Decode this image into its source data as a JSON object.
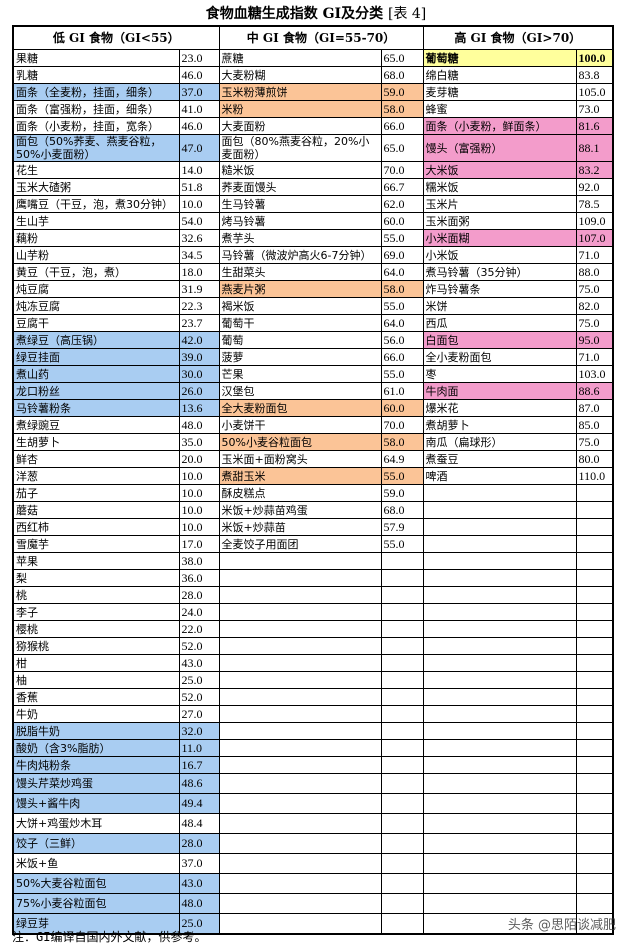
{
  "title": {
    "main": "食物血糖生成指数 GI及分类",
    "sub": "[表 4]"
  },
  "colors": {
    "blue": "#a9cdf2",
    "orange": "#fbc497",
    "pink": "#f39ccb",
    "yellow": "#ffff9c"
  },
  "headers": [
    "低 GI 食物（GI<55）",
    "中 GI 食物（GI=55-70）",
    "高 GI 食物（GI>70）"
  ],
  "low": [
    {
      "name": "果糖",
      "value": "23.0"
    },
    {
      "name": "乳糖",
      "value": "46.0"
    },
    {
      "name": "面条（全麦粉，挂面，细条）",
      "value": "37.0",
      "hl": "blue"
    },
    {
      "name": "面条（富强粉，挂面，细条）",
      "value": "41.0"
    },
    {
      "name": "面条（小麦粉，挂面，宽条）",
      "value": "46.0"
    },
    {
      "name": "面包（50%荞麦、燕麦谷粒，50%小麦面粉）",
      "value": "47.0",
      "hl": "blue"
    },
    {
      "name": "花生",
      "value": "14.0"
    },
    {
      "name": "玉米大碴粥",
      "value": "51.8"
    },
    {
      "name": "鹰嘴豆（干豆，泡，煮30分钟）",
      "value": "10.0"
    },
    {
      "name": "生山芋",
      "value": "54.0"
    },
    {
      "name": "藕粉",
      "value": "32.6"
    },
    {
      "name": "山芋粉",
      "value": "34.5"
    },
    {
      "name": "黄豆（干豆，泡，煮）",
      "value": "18.0"
    },
    {
      "name": "炖豆腐",
      "value": "31.9"
    },
    {
      "name": "炖冻豆腐",
      "value": "22.3"
    },
    {
      "name": "豆腐干",
      "value": "23.7"
    },
    {
      "name": "煮绿豆（高压锅）",
      "value": "42.0",
      "hl": "blue"
    },
    {
      "name": "绿豆挂面",
      "value": "39.0",
      "hl": "blue"
    },
    {
      "name": "煮山药",
      "value": "30.0",
      "hl": "blue"
    },
    {
      "name": "龙口粉丝",
      "value": "26.0",
      "hl": "blue"
    },
    {
      "name": "马铃薯粉条",
      "value": "13.6",
      "hl": "blue"
    },
    {
      "name": "煮绿豌豆",
      "value": "48.0"
    },
    {
      "name": "生胡萝卜",
      "value": "35.0"
    },
    {
      "name": "鲜杏",
      "value": "20.0"
    },
    {
      "name": "洋葱",
      "value": "10.0"
    },
    {
      "name": "茄子",
      "value": "10.0"
    },
    {
      "name": "蘑菇",
      "value": "10.0"
    },
    {
      "name": "西红柿",
      "value": "10.0"
    },
    {
      "name": "雪魔芋",
      "value": "17.0"
    },
    {
      "name": "苹果",
      "value": "38.0"
    },
    {
      "name": "梨",
      "value": "36.0"
    },
    {
      "name": "桃",
      "value": "28.0"
    },
    {
      "name": "李子",
      "value": "24.0"
    },
    {
      "name": "樱桃",
      "value": "22.0"
    },
    {
      "name": "猕猴桃",
      "value": "52.0"
    },
    {
      "name": "柑",
      "value": "43.0"
    },
    {
      "name": "柚",
      "value": "25.0"
    },
    {
      "name": "香蕉",
      "value": "52.0"
    },
    {
      "name": "牛奶",
      "value": "27.0"
    },
    {
      "name": "脱脂牛奶",
      "value": "32.0",
      "hl": "blue"
    },
    {
      "name": "酸奶（含3%脂肪）",
      "value": "11.0",
      "hl": "blue"
    },
    {
      "name": "牛肉炖粉条",
      "value": "16.7",
      "hl": "blue"
    },
    {
      "name": "馒头芹菜炒鸡蛋",
      "value": "48.6",
      "hl": "blue"
    },
    {
      "name": "馒头+酱牛肉",
      "value": "49.4",
      "hl": "blue"
    },
    {
      "name": "大饼+鸡蛋炒木耳",
      "value": "48.4"
    },
    {
      "name": "饺子（三鲜）",
      "value": "28.0",
      "hl": "blue"
    },
    {
      "name": "米饭+鱼",
      "value": "37.0"
    },
    {
      "name": "50%大麦谷粒面包",
      "value": "43.0",
      "hl": "blue"
    },
    {
      "name": "75%小麦谷粒面包",
      "value": "48.0",
      "hl": "blue"
    },
    {
      "name": "绿豆芽",
      "value": "25.0",
      "hl": "blue"
    }
  ],
  "mid": [
    {
      "name": "蔗糖",
      "value": "65.0"
    },
    {
      "name": "大麦粉糊",
      "value": "68.0"
    },
    {
      "name": "玉米粉薄煎饼",
      "value": "59.0",
      "hl": "orange"
    },
    {
      "name": "米粉",
      "value": "58.0",
      "hl": "orange"
    },
    {
      "name": "大麦面粉",
      "value": "66.0"
    },
    {
      "name": "面包（80%燕麦谷粒，20%小麦面粉）",
      "value": "65.0"
    },
    {
      "name": "糙米饭",
      "value": "70.0"
    },
    {
      "name": "荞麦面馒头",
      "value": "66.7"
    },
    {
      "name": "生马铃薯",
      "value": "62.0"
    },
    {
      "name": "烤马铃薯",
      "value": "60.0"
    },
    {
      "name": "煮芋头",
      "value": "55.0"
    },
    {
      "name": "马铃薯（微波炉高火6-7分钟）",
      "value": "69.0"
    },
    {
      "name": "生甜菜头",
      "value": "64.0"
    },
    {
      "name": "燕麦片粥",
      "value": "58.0",
      "hl": "orange"
    },
    {
      "name": "褐米饭",
      "value": "55.0"
    },
    {
      "name": "葡萄干",
      "value": "64.0"
    },
    {
      "name": "葡萄",
      "value": "56.0"
    },
    {
      "name": "菠萝",
      "value": "66.0"
    },
    {
      "name": "芒果",
      "value": "55.0"
    },
    {
      "name": "汉堡包",
      "value": "61.0"
    },
    {
      "name": "全大麦粉面包",
      "value": "60.0",
      "hl": "orange"
    },
    {
      "name": "小麦饼干",
      "value": "70.0"
    },
    {
      "name": "50%小麦谷粒面包",
      "value": "58.0",
      "hl": "orange"
    },
    {
      "name": "玉米面+面粉窝头",
      "value": "64.9"
    },
    {
      "name": "煮甜玉米",
      "value": "55.0",
      "hl": "orange"
    },
    {
      "name": "酥皮糕点",
      "value": "59.0"
    },
    {
      "name": "米饭+炒蒜苗鸡蛋",
      "value": "68.0"
    },
    {
      "name": "米饭+炒蒜苗",
      "value": "57.9"
    },
    {
      "name": "全麦饺子用面团",
      "value": "55.0"
    }
  ],
  "high": [
    {
      "name": "葡萄糖",
      "value": "100.0",
      "hl": "yellow",
      "bold": true
    },
    {
      "name": "绵白糖",
      "value": "83.8"
    },
    {
      "name": "麦芽糖",
      "value": "105.0"
    },
    {
      "name": "蜂蜜",
      "value": "73.0"
    },
    {
      "name": "面条（小麦粉，鲜面条）",
      "value": "81.6",
      "hl": "pink"
    },
    {
      "name": "馒头（富强粉）",
      "value": "88.1",
      "hl": "pink"
    },
    {
      "name": "大米饭",
      "value": "83.2",
      "hl": "pink"
    },
    {
      "name": "糯米饭",
      "value": "92.0"
    },
    {
      "name": "玉米片",
      "value": "78.5"
    },
    {
      "name": "玉米面粥",
      "value": "109.0"
    },
    {
      "name": "小米面糊",
      "value": "107.0",
      "hl": "pink"
    },
    {
      "name": "小米饭",
      "value": "71.0"
    },
    {
      "name": "煮马铃薯（35分钟）",
      "value": "88.0"
    },
    {
      "name": "炸马铃薯条",
      "value": "75.0"
    },
    {
      "name": "米饼",
      "value": "82.0"
    },
    {
      "name": "西瓜",
      "value": "75.0"
    },
    {
      "name": "白面包",
      "value": "95.0",
      "hl": "pink"
    },
    {
      "name": "全小麦粉面包",
      "value": "71.0"
    },
    {
      "name": "枣",
      "value": "103.0"
    },
    {
      "name": "牛肉面",
      "value": "88.6",
      "hl": "pink"
    },
    {
      "name": "爆米花",
      "value": "87.0"
    },
    {
      "name": "煮胡萝卜",
      "value": "85.0"
    },
    {
      "name": "南瓜（扁球形）",
      "value": "75.0"
    },
    {
      "name": "煮蚕豆",
      "value": "80.0"
    },
    {
      "name": "啤酒",
      "value": "110.0"
    }
  ],
  "note": "注：GI编译自国内外文献，供参考。",
  "watermark": "头条 @思陌谈减肥"
}
